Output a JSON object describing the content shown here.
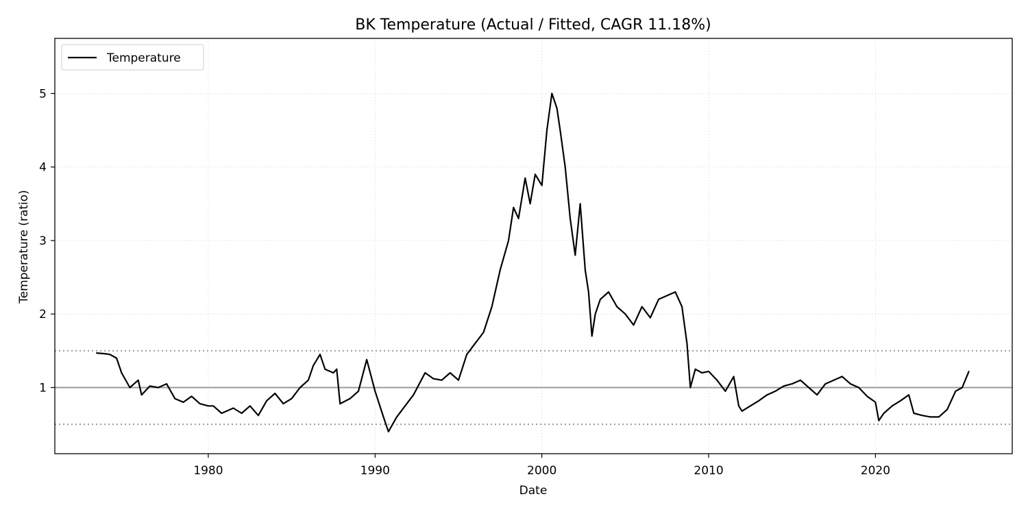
{
  "chart_data": {
    "type": "line",
    "title": "BK Temperature (Actual / Fitted, CAGR 11.18%)",
    "xlabel": "Date",
    "ylabel": "Temperature (ratio)",
    "xlim": [
      1970.8,
      2028.2
    ],
    "ylim": [
      0.1,
      5.75
    ],
    "x_ticks": [
      1980,
      1990,
      2000,
      2010,
      2020
    ],
    "x_tick_labels": [
      "1980",
      "1990",
      "2000",
      "2010",
      "2020"
    ],
    "y_ticks": [
      1,
      2,
      3,
      4,
      5
    ],
    "y_tick_labels": [
      "1",
      "2",
      "3",
      "4",
      "5"
    ],
    "grid": true,
    "legend_position": "top-left",
    "reference_lines": [
      {
        "y": 1.0,
        "style": "solid",
        "color": "#999999"
      },
      {
        "y": 1.5,
        "style": "dotted",
        "color": "#999999"
      },
      {
        "y": 0.5,
        "style": "dotted",
        "color": "#999999"
      }
    ],
    "series": [
      {
        "name": "Temperature",
        "color": "#000000",
        "x": [
          1973.3,
          1973.8,
          1974.1,
          1974.5,
          1974.8,
          1975.3,
          1975.8,
          1976.0,
          1976.5,
          1977.0,
          1977.5,
          1978.0,
          1978.5,
          1979.0,
          1979.5,
          1980.0,
          1980.3,
          1980.8,
          1981.5,
          1982.0,
          1982.5,
          1983.0,
          1983.5,
          1984.0,
          1984.5,
          1985.0,
          1985.5,
          1986.0,
          1986.3,
          1986.7,
          1987.0,
          1987.5,
          1987.7,
          1987.9,
          1988.5,
          1989.0,
          1989.5,
          1990.0,
          1990.5,
          1990.8,
          1991.3,
          1991.8,
          1992.3,
          1993.0,
          1993.5,
          1994.0,
          1994.5,
          1995.0,
          1995.5,
          1996.0,
          1996.5,
          1997.0,
          1997.5,
          1998.0,
          1998.3,
          1998.6,
          1999.0,
          1999.3,
          1999.6,
          2000.0,
          2000.3,
          2000.6,
          2000.9,
          2001.1,
          2001.4,
          2001.7,
          2002.0,
          2002.3,
          2002.6,
          2002.8,
          2003.0,
          2003.2,
          2003.5,
          2004.0,
          2004.5,
          2005.0,
          2005.5,
          2006.0,
          2006.5,
          2007.0,
          2007.5,
          2008.0,
          2008.4,
          2008.7,
          2008.9,
          2009.2,
          2009.6,
          2010.0,
          2010.5,
          2011.0,
          2011.5,
          2011.8,
          2012.0,
          2012.5,
          2013.0,
          2013.5,
          2014.0,
          2014.5,
          2015.0,
          2015.5,
          2016.0,
          2016.5,
          2017.0,
          2017.5,
          2018.0,
          2018.5,
          2019.0,
          2019.5,
          2020.0,
          2020.2,
          2020.5,
          2021.0,
          2021.5,
          2022.0,
          2022.3,
          2022.8,
          2023.3,
          2023.8,
          2024.3,
          2024.8,
          2025.2,
          2025.6
        ],
        "values": [
          1.47,
          1.46,
          1.45,
          1.4,
          1.2,
          1.0,
          1.1,
          0.9,
          1.02,
          1.0,
          1.05,
          0.85,
          0.8,
          0.88,
          0.78,
          0.75,
          0.75,
          0.65,
          0.72,
          0.65,
          0.75,
          0.62,
          0.82,
          0.92,
          0.78,
          0.85,
          1.0,
          1.1,
          1.3,
          1.45,
          1.25,
          1.2,
          1.25,
          0.78,
          0.85,
          0.95,
          1.38,
          0.95,
          0.6,
          0.4,
          0.6,
          0.75,
          0.9,
          1.2,
          1.12,
          1.1,
          1.2,
          1.1,
          1.45,
          1.6,
          1.75,
          2.1,
          2.6,
          3.0,
          3.45,
          3.3,
          3.85,
          3.5,
          3.9,
          3.75,
          4.5,
          5.0,
          4.8,
          4.5,
          4.0,
          3.3,
          2.8,
          3.5,
          2.6,
          2.3,
          1.7,
          2.0,
          2.2,
          2.3,
          2.1,
          2.0,
          1.85,
          2.1,
          1.95,
          2.2,
          2.25,
          2.3,
          2.1,
          1.6,
          1.0,
          1.25,
          1.2,
          1.22,
          1.1,
          0.95,
          1.15,
          0.75,
          0.68,
          0.75,
          0.82,
          0.9,
          0.95,
          1.02,
          1.05,
          1.1,
          1.0,
          0.9,
          1.05,
          1.1,
          1.15,
          1.05,
          1.0,
          0.88,
          0.8,
          0.55,
          0.65,
          0.75,
          0.82,
          0.9,
          0.65,
          0.62,
          0.6,
          0.6,
          0.7,
          0.95,
          1.0,
          1.22
        ]
      }
    ]
  }
}
